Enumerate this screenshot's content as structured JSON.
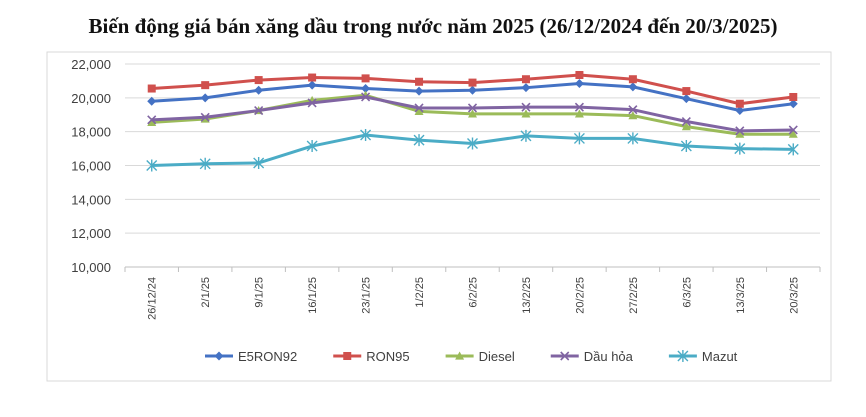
{
  "chart_data": {
    "type": "line",
    "title": "Biến động giá bán xăng dầu trong nước năm 2025 (26/12/2024 đến 20/3/2025)",
    "xlabel": "",
    "ylabel": "",
    "categories": [
      "26/12/24",
      "2/1/25",
      "9/1/25",
      "16/1/25",
      "23/1/25",
      "1/2/25",
      "6/2/25",
      "13/2/25",
      "20/2/25",
      "27/2/25",
      "6/3/25",
      "13/3/25",
      "20/3/25"
    ],
    "ylim": [
      10000,
      22000
    ],
    "yticks": [
      10000,
      12000,
      14000,
      16000,
      18000,
      20000,
      22000
    ],
    "ytick_labels": [
      "10,000",
      "12,000",
      "14,000",
      "16,000",
      "18,000",
      "20,000",
      "22,000"
    ],
    "grid": "horizontal",
    "legend_position": "bottom",
    "series": [
      {
        "name": "E5RON92",
        "color": "#4472C4",
        "marker": "diamond",
        "values": [
          19800,
          20000,
          20450,
          20750,
          20550,
          20400,
          20450,
          20600,
          20850,
          20650,
          19950,
          19250,
          19650
        ]
      },
      {
        "name": "RON95",
        "color": "#D0504D",
        "marker": "square",
        "values": [
          20550,
          20750,
          21050,
          21200,
          21150,
          20950,
          20900,
          21100,
          21350,
          21100,
          20400,
          19650,
          20050
        ]
      },
      {
        "name": "Diesel",
        "color": "#9BBB59",
        "marker": "triangle",
        "values": [
          18550,
          18750,
          19250,
          19850,
          20150,
          19200,
          19050,
          19050,
          19050,
          18950,
          18300,
          17850,
          17850
        ]
      },
      {
        "name": "Dầu hỏa",
        "color": "#8064A2",
        "marker": "x",
        "values": [
          18700,
          18850,
          19250,
          19700,
          20050,
          19400,
          19400,
          19450,
          19450,
          19300,
          18600,
          18050,
          18100
        ]
      },
      {
        "name": "Mazut",
        "color": "#4BACC6",
        "marker": "asterisk",
        "values": [
          16000,
          16100,
          16150,
          17150,
          17800,
          17500,
          17300,
          17750,
          17600,
          17600,
          17150,
          17000,
          16950
        ]
      }
    ]
  }
}
